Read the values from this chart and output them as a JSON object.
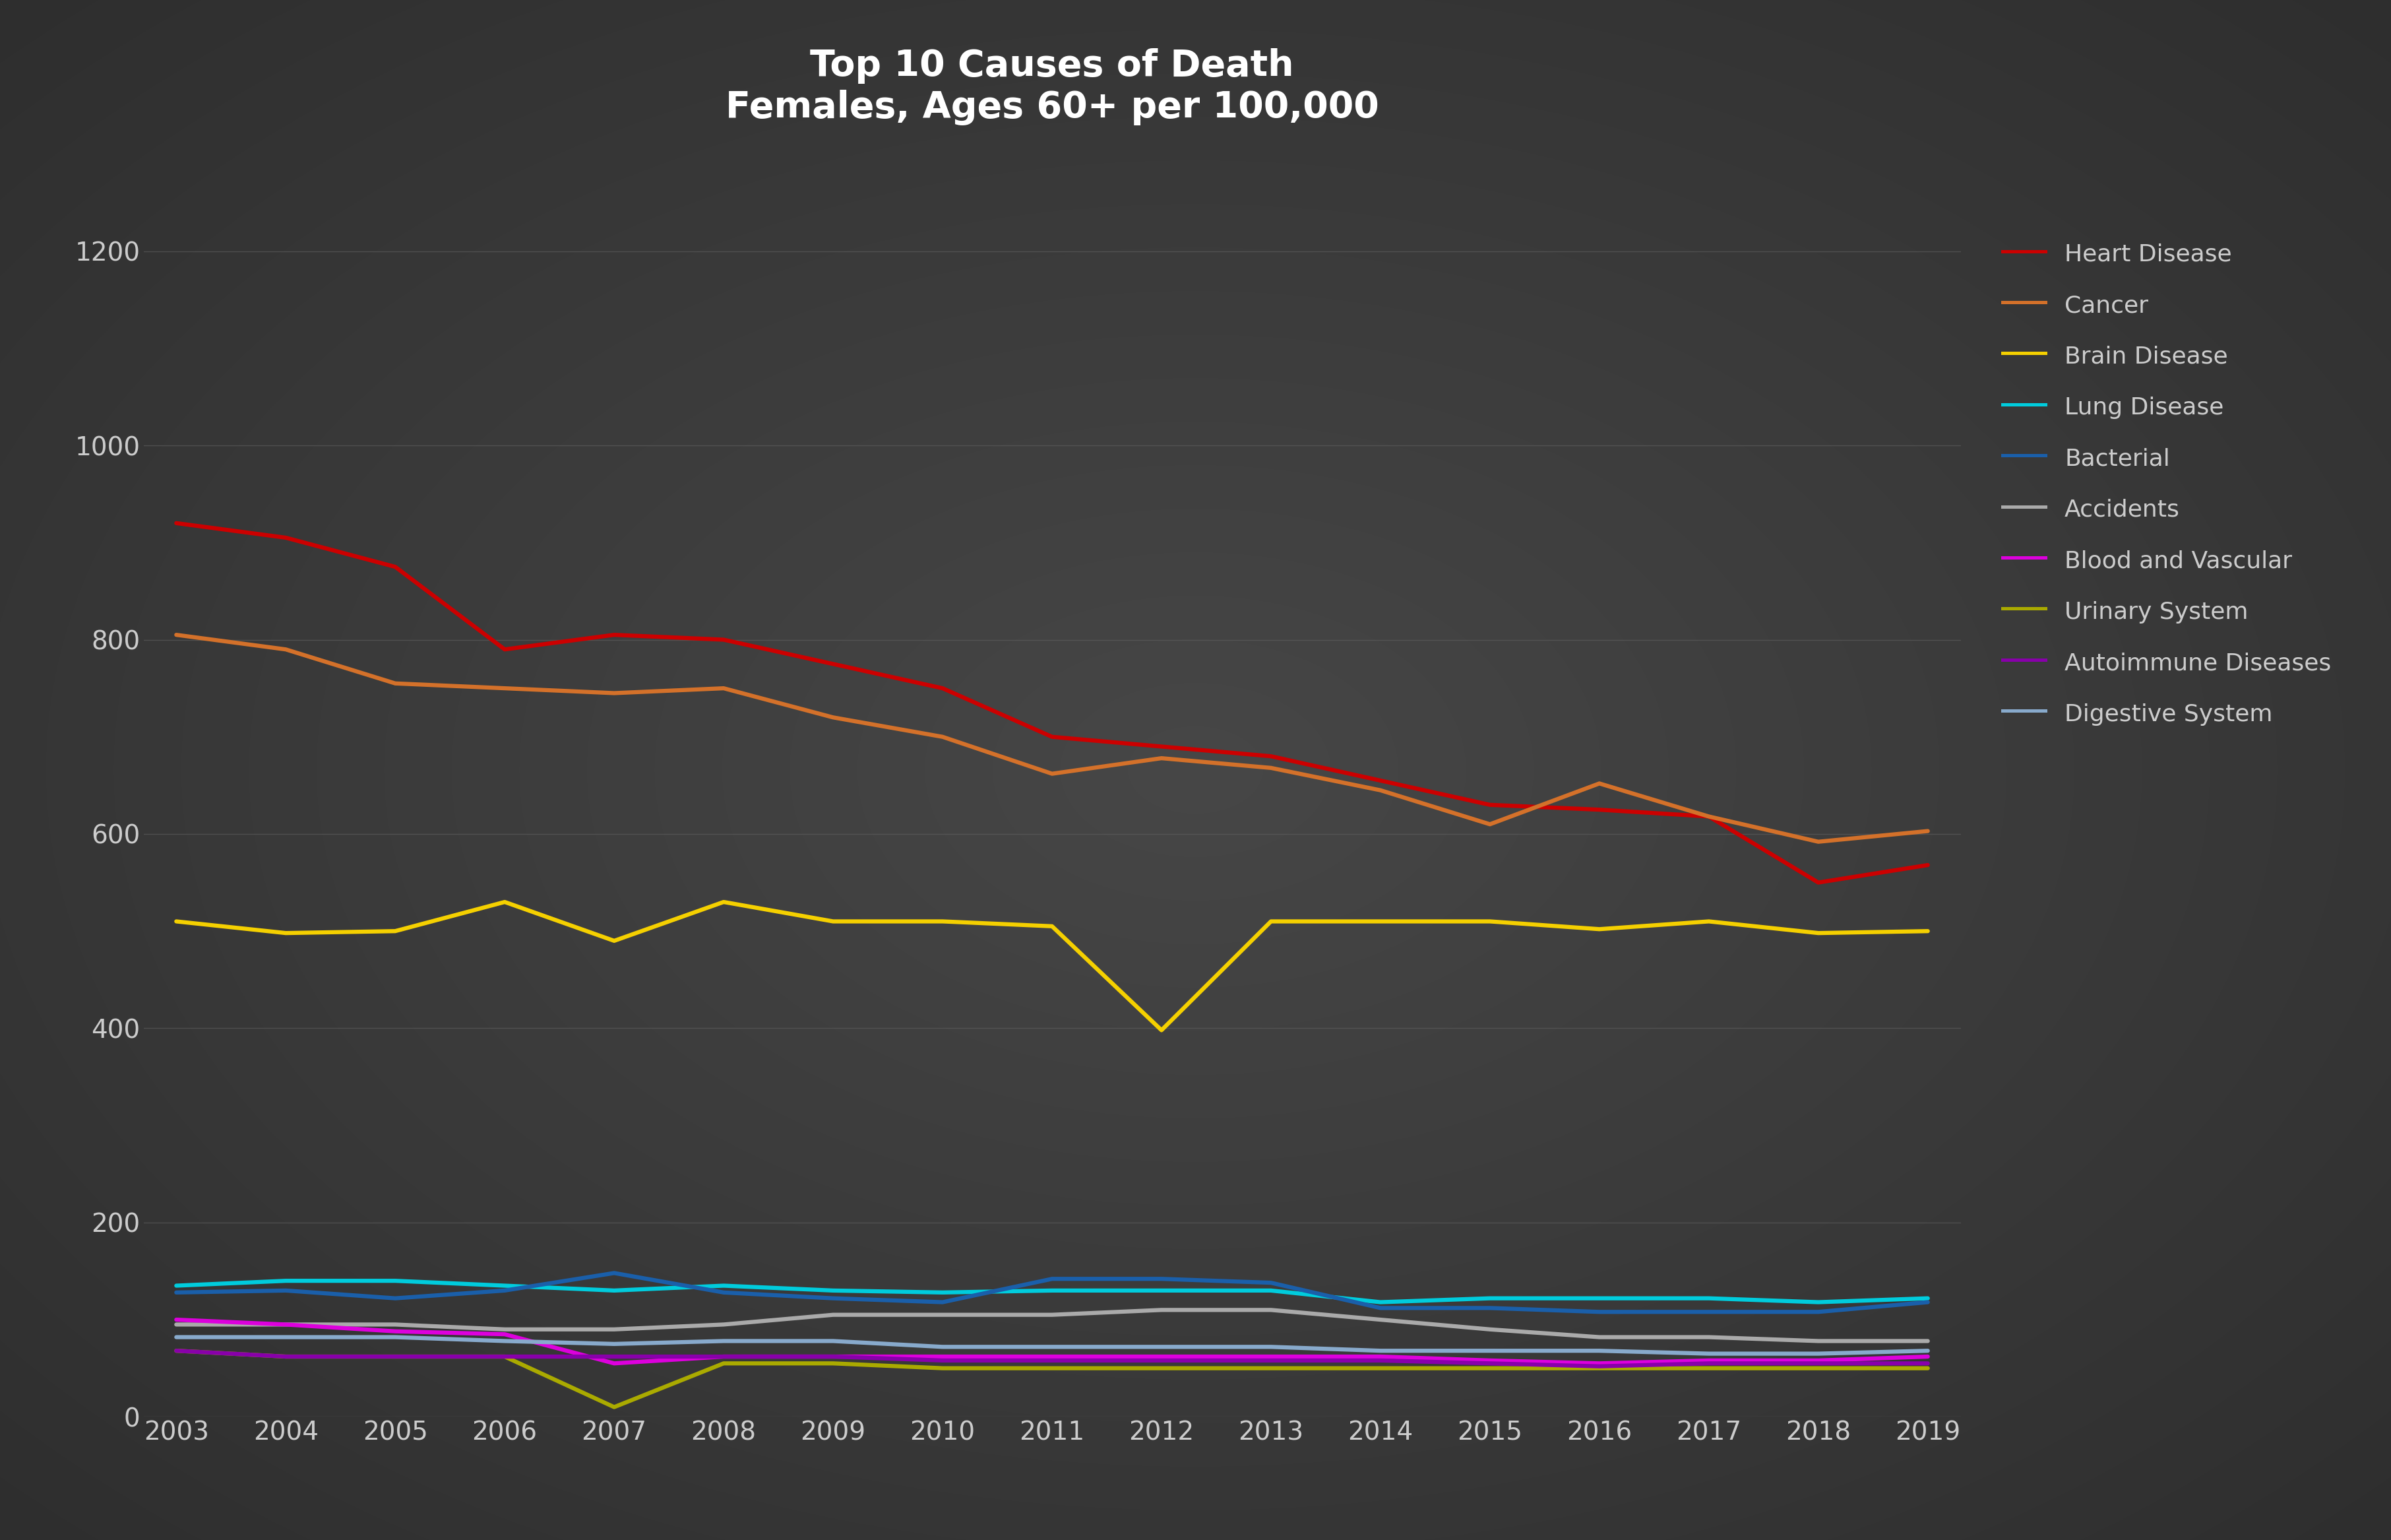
{
  "title_line1": "Top 10 Causes of Death",
  "title_line2": "Females, Ages 60+ per 100,000",
  "years": [
    2003,
    2004,
    2005,
    2006,
    2007,
    2008,
    2009,
    2010,
    2011,
    2012,
    2013,
    2014,
    2015,
    2016,
    2017,
    2018,
    2019
  ],
  "series": {
    "Heart Disease": {
      "color": "#cc0000",
      "data": [
        920,
        905,
        875,
        790,
        805,
        800,
        775,
        750,
        700,
        690,
        680,
        655,
        630,
        625,
        618,
        550,
        568
      ]
    },
    "Cancer": {
      "color": "#d4712a",
      "data": [
        805,
        790,
        755,
        750,
        745,
        750,
        720,
        700,
        662,
        678,
        668,
        645,
        610,
        652,
        618,
        592,
        603
      ]
    },
    "Brain Disease": {
      "color": "#f5d000",
      "data": [
        510,
        498,
        500,
        530,
        490,
        530,
        510,
        510,
        505,
        398,
        510,
        510,
        510,
        502,
        510,
        498,
        500
      ]
    },
    "Lung Disease": {
      "color": "#00ccdd",
      "data": [
        135,
        140,
        140,
        135,
        130,
        135,
        130,
        128,
        130,
        130,
        130,
        118,
        122,
        122,
        122,
        118,
        122
      ]
    },
    "Bacterial": {
      "color": "#1a5faa",
      "data": [
        128,
        130,
        122,
        130,
        148,
        128,
        122,
        118,
        142,
        142,
        138,
        112,
        112,
        108,
        108,
        108,
        118
      ]
    },
    "Accidents": {
      "color": "#aaaaaa",
      "data": [
        95,
        95,
        95,
        90,
        90,
        95,
        105,
        105,
        105,
        110,
        110,
        100,
        90,
        82,
        82,
        78,
        78
      ]
    },
    "Blood and Vascular": {
      "color": "#dd00dd",
      "data": [
        100,
        95,
        88,
        85,
        55,
        62,
        62,
        62,
        62,
        62,
        62,
        62,
        58,
        55,
        58,
        58,
        62
      ]
    },
    "Urinary System": {
      "color": "#aaaa00",
      "data": [
        68,
        62,
        62,
        62,
        10,
        55,
        55,
        50,
        50,
        50,
        50,
        50,
        50,
        50,
        50,
        50,
        50
      ]
    },
    "Autoimmune Diseases": {
      "color": "#8800aa",
      "data": [
        68,
        62,
        62,
        62,
        62,
        62,
        62,
        58,
        58,
        58,
        58,
        58,
        55,
        52,
        55,
        55,
        55
      ]
    },
    "Digestive System": {
      "color": "#88aacc",
      "data": [
        82,
        82,
        82,
        78,
        75,
        78,
        78,
        72,
        72,
        72,
        72,
        68,
        68,
        68,
        65,
        65,
        68
      ]
    }
  },
  "ylim": [
    0,
    1300
  ],
  "yticks": [
    0,
    200,
    400,
    600,
    800,
    1000,
    1200
  ],
  "bg_dark": "#2e2e2e",
  "bg_mid": "#474747",
  "grid_color": "#606060",
  "text_color": "#cccccc",
  "title_color": "#ffffff",
  "linewidth": 4.5,
  "title_fontsize": 40,
  "tick_fontsize": 28,
  "legend_fontsize": 26
}
